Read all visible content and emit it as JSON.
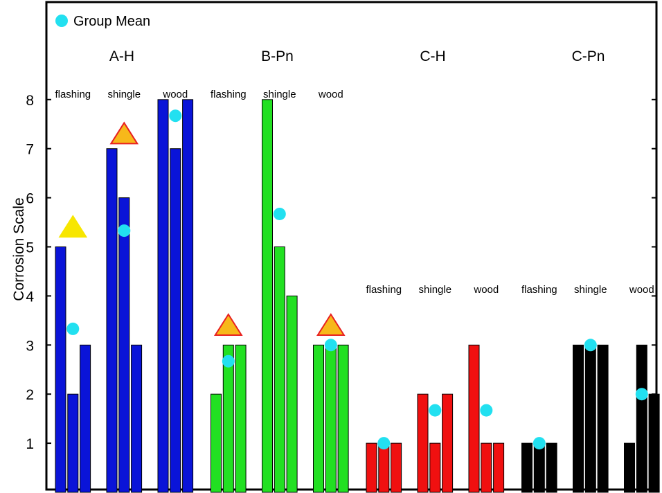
{
  "chart_data": {
    "type": "bar",
    "ylabel": "Corrosion Scale",
    "xlabel": "",
    "title": "",
    "ylim": [
      0,
      9
    ],
    "yticks": [
      1,
      2,
      3,
      4,
      5,
      6,
      7,
      8
    ],
    "legend": {
      "label": "Group Mean",
      "color": "#22e0f0",
      "position": "top-left"
    },
    "groups": [
      {
        "name": "A-H",
        "color": "#0a14d8",
        "materials": [
          {
            "label": "flashing",
            "values": [
              5,
              2,
              3
            ],
            "mean": 3.33,
            "triangle": {
              "value": 5.4,
              "fill": "#f7e600",
              "stroke": "#f7e600"
            }
          },
          {
            "label": "shingle",
            "values": [
              7,
              6,
              3
            ],
            "mean": 5.33,
            "triangle": {
              "value": 7.3,
              "fill": "#f7b81a",
              "stroke": "#e82020"
            }
          },
          {
            "label": "wood",
            "values": [
              8,
              7,
              8
            ],
            "mean": 7.67
          }
        ]
      },
      {
        "name": "B-Pn",
        "color": "#22e022",
        "materials": [
          {
            "label": "flashing",
            "values": [
              2,
              3,
              3
            ],
            "mean": 2.67,
            "triangle": {
              "value": 3.4,
              "fill": "#f7b81a",
              "stroke": "#e82020"
            }
          },
          {
            "label": "shingle",
            "values": [
              8,
              5,
              4
            ],
            "mean": 5.67
          },
          {
            "label": "wood",
            "values": [
              3,
              3,
              3
            ],
            "mean": 3.0,
            "triangle": {
              "value": 3.4,
              "fill": "#f7b81a",
              "stroke": "#e82020"
            }
          }
        ]
      },
      {
        "name": "C-H",
        "color": "#f01010",
        "materials": [
          {
            "label": "flashing",
            "values": [
              1,
              1,
              1
            ],
            "mean": 1.0
          },
          {
            "label": "shingle",
            "values": [
              2,
              1,
              2
            ],
            "mean": 1.67
          },
          {
            "label": "wood",
            "values": [
              3,
              1,
              1
            ],
            "mean": 1.67
          }
        ]
      },
      {
        "name": "C-Pn",
        "color": "#000000",
        "materials": [
          {
            "label": "flashing",
            "values": [
              1,
              1,
              1
            ],
            "mean": 1.0
          },
          {
            "label": "shingle",
            "values": [
              3,
              3,
              3
            ],
            "mean": 3.0
          },
          {
            "label": "wood",
            "values": [
              1,
              3,
              2
            ],
            "mean": 2.0
          }
        ]
      }
    ]
  }
}
